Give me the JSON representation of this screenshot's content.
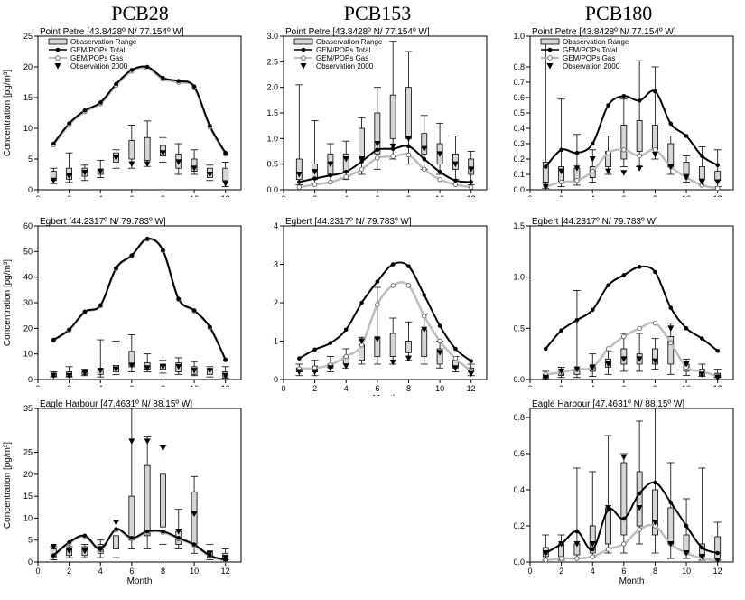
{
  "headers": {
    "col1": "PCB28",
    "col2": "PCB153",
    "col3": "PCB180"
  },
  "common": {
    "xlabel": "Month",
    "ylabel": "Concentration [pg/m³]",
    "legend": [
      "Obaservation Range",
      "GEM/POPs Total",
      "GEM/POPs Gas",
      "Observation 2000"
    ],
    "colors": {
      "total": "#000000",
      "gas": "#bdbdbd",
      "box_fill": "#d6d6d6"
    }
  },
  "chart_data": [
    {
      "id": "pcb28-pointpetre",
      "type": "line",
      "title": "Point Petre [43.8428º N/ 77.154º W]",
      "ylim": [
        0,
        25
      ],
      "yticks": [
        0,
        5,
        10,
        15,
        20,
        25
      ],
      "xlim": [
        0,
        13
      ],
      "xticks": [
        0,
        2,
        4,
        6,
        8,
        10,
        12
      ],
      "show_legend": true,
      "show_ylabel": true,
      "show_xlabel": false,
      "total": [
        7.5,
        10.8,
        12.9,
        14.2,
        17.2,
        19.5,
        20.0,
        18.2,
        17.7,
        16.8,
        10.4,
        6.0
      ],
      "gas": [
        7.3,
        10.6,
        12.7,
        14.0,
        17.0,
        19.3,
        19.8,
        18.0,
        17.5,
        16.6,
        10.2,
        5.8
      ],
      "box_low": [
        1.0,
        1.2,
        1.5,
        2.0,
        3.5,
        3.5,
        3.8,
        4.5,
        2.5,
        2.5,
        1.5,
        0.5
      ],
      "box_q1": [
        1.5,
        1.7,
        2.2,
        2.5,
        4.5,
        5.0,
        4.8,
        5.5,
        3.5,
        3.0,
        2.0,
        1.5
      ],
      "box_q3": [
        3.0,
        3.5,
        3.5,
        3.3,
        6.0,
        8.0,
        8.5,
        7.2,
        5.8,
        5.0,
        3.5,
        3.5
      ],
      "box_high": [
        3.5,
        6.0,
        4.0,
        4.8,
        6.5,
        10.5,
        11.2,
        8.5,
        7.5,
        6.5,
        4.0,
        4.5
      ],
      "obs": [
        1.5,
        2.2,
        2.8,
        3.0,
        5.2,
        4.2,
        4.2,
        6.0,
        4.5,
        3.5,
        2.5,
        1.0
      ]
    },
    {
      "id": "pcb153-pointpetre",
      "type": "line",
      "title": "Point Petre [43.8428º N/ 77.154º W]",
      "ylim": [
        0,
        3.0
      ],
      "yticks": [
        0.0,
        0.5,
        1.0,
        1.5,
        2.0,
        2.5,
        3.0
      ],
      "xlim": [
        0,
        13
      ],
      "xticks": [
        0,
        2,
        4,
        6,
        8,
        10,
        12
      ],
      "show_legend": true,
      "show_ylabel": false,
      "show_xlabel": false,
      "total": [
        0.15,
        0.22,
        0.28,
        0.35,
        0.55,
        0.78,
        0.8,
        0.85,
        0.6,
        0.35,
        0.18,
        0.15
      ],
      "gas": [
        0.05,
        0.1,
        0.15,
        0.25,
        0.4,
        0.62,
        0.65,
        0.68,
        0.4,
        0.2,
        0.1,
        0.05
      ],
      "box_low": [
        0.1,
        0.12,
        0.15,
        0.2,
        0.3,
        0.4,
        0.6,
        0.5,
        0.4,
        0.3,
        0.2,
        0.1
      ],
      "box_q1": [
        0.2,
        0.2,
        0.3,
        0.35,
        0.6,
        0.7,
        1.0,
        1.0,
        0.7,
        0.5,
        0.4,
        0.3
      ],
      "box_q3": [
        0.6,
        0.5,
        0.7,
        0.7,
        1.2,
        1.5,
        1.85,
        2.0,
        1.1,
        0.9,
        0.7,
        0.6
      ],
      "box_high": [
        2.05,
        1.35,
        0.9,
        0.95,
        1.4,
        2.0,
        2.9,
        2.7,
        1.45,
        1.3,
        1.05,
        0.75
      ],
      "obs": [
        0.3,
        0.35,
        0.5,
        0.6,
        0.6,
        0.9,
        0.85,
        1.0,
        0.8,
        0.7,
        0.5,
        0.4
      ]
    },
    {
      "id": "pcb180-pointpetre",
      "type": "line",
      "title": "Point Petre [43.8428º N/ 77.154º W]",
      "ylim": [
        0,
        1.0
      ],
      "yticks": [
        0.0,
        0.1,
        0.2,
        0.3,
        0.4,
        0.5,
        0.6,
        0.7,
        0.8,
        1.0
      ],
      "xlim": [
        0,
        13
      ],
      "xticks": [
        0,
        2,
        4,
        6,
        8,
        10,
        12
      ],
      "show_legend": true,
      "show_ylabel": false,
      "show_xlabel": false,
      "total": [
        0.15,
        0.26,
        0.24,
        0.3,
        0.55,
        0.61,
        0.58,
        0.64,
        0.43,
        0.35,
        0.22,
        0.16
      ],
      "gas": [
        0.02,
        0.05,
        0.06,
        0.12,
        0.24,
        0.26,
        0.22,
        0.26,
        0.15,
        0.08,
        0.03,
        0.01
      ],
      "box_low": [
        0.01,
        0.02,
        0.03,
        0.05,
        0.1,
        0.15,
        0.15,
        0.2,
        0.1,
        0.05,
        0.03,
        0.02
      ],
      "box_q1": [
        0.05,
        0.05,
        0.06,
        0.08,
        0.15,
        0.2,
        0.25,
        0.26,
        0.15,
        0.1,
        0.07,
        0.06
      ],
      "box_q3": [
        0.18,
        0.15,
        0.14,
        0.15,
        0.25,
        0.42,
        0.45,
        0.42,
        0.3,
        0.18,
        0.15,
        0.12
      ],
      "box_high": [
        0.95,
        0.59,
        0.36,
        0.26,
        0.35,
        0.59,
        0.84,
        0.8,
        0.35,
        0.22,
        0.28,
        0.26
      ],
      "obs": [
        0.02,
        0.12,
        0.14,
        0.2,
        0.12,
        0.11,
        0.14,
        0.23,
        0.15,
        0.08,
        0.05,
        0.05
      ]
    },
    {
      "id": "pcb28-egbert",
      "type": "line",
      "title": "Egbert [44.2317º N/ 79.783º W]",
      "ylim": [
        0,
        60
      ],
      "yticks": [
        0,
        10,
        20,
        30,
        40,
        50,
        60
      ],
      "xlim": [
        0,
        13
      ],
      "xticks": [
        0,
        2,
        4,
        6,
        8,
        10,
        12
      ],
      "show_legend": false,
      "show_ylabel": true,
      "show_xlabel": false,
      "total": [
        15.5,
        19.5,
        26.5,
        29.0,
        43.5,
        48.5,
        55.0,
        50.5,
        31.5,
        27.0,
        20.5,
        7.8
      ],
      "gas": [
        15.3,
        19.3,
        26.3,
        28.8,
        43.3,
        48.3,
        54.8,
        50.3,
        31.3,
        26.8,
        20.3,
        7.6
      ],
      "box_low": [
        1.0,
        1.0,
        1.5,
        1.0,
        2.0,
        3.0,
        3.0,
        2.5,
        2.0,
        1.5,
        1.0,
        0.5
      ],
      "box_q1": [
        1.2,
        1.2,
        2.0,
        2.0,
        3.0,
        5.0,
        4.0,
        4.0,
        3.0,
        2.0,
        2.0,
        1.0
      ],
      "box_q3": [
        2.5,
        3.0,
        3.0,
        4.0,
        5.5,
        11.0,
        6.5,
        6.0,
        6.5,
        5.0,
        4.0,
        3.0
      ],
      "box_high": [
        3.0,
        5.0,
        4.0,
        15.5,
        15.0,
        17.5,
        10.0,
        7.5,
        8.5,
        7.0,
        5.0,
        5.0
      ],
      "obs": [
        1.5,
        1.5,
        2.5,
        3.5,
        4.0,
        5.5,
        4.5,
        5.0,
        5.0,
        3.5,
        3.5,
        1.5
      ]
    },
    {
      "id": "pcb153-egbert",
      "type": "line",
      "title": "Egbert [44.2317º N/ 79.783º W]",
      "ylim": [
        0,
        4
      ],
      "yticks": [
        0,
        1,
        2,
        3,
        4
      ],
      "xlim": [
        0,
        13
      ],
      "xticks": [
        0,
        2,
        4,
        6,
        8,
        10,
        12
      ],
      "show_legend": false,
      "show_ylabel": false,
      "show_xlabel": true,
      "total": [
        0.55,
        0.78,
        0.95,
        1.3,
        2.0,
        2.55,
        3.0,
        2.95,
        2.2,
        1.4,
        0.8,
        0.48
      ],
      "gas": [
        0.28,
        0.3,
        0.38,
        0.6,
        0.9,
        1.95,
        2.45,
        2.45,
        1.65,
        1.0,
        0.55,
        0.22
      ],
      "box_low": [
        0.1,
        0.1,
        0.2,
        0.3,
        0.4,
        0.4,
        0.4,
        0.5,
        0.4,
        0.3,
        0.2,
        0.1
      ],
      "box_q1": [
        0.2,
        0.2,
        0.3,
        0.4,
        0.5,
        0.6,
        0.6,
        0.7,
        0.6,
        0.4,
        0.3,
        0.2
      ],
      "box_q3": [
        0.3,
        0.35,
        0.4,
        0.6,
        0.9,
        1.1,
        1.2,
        1.0,
        1.3,
        0.8,
        0.5,
        0.3
      ],
      "box_high": [
        0.4,
        0.5,
        0.6,
        0.8,
        1.1,
        2.4,
        1.6,
        1.5,
        1.7,
        1.0,
        0.6,
        0.4
      ],
      "obs": [
        0.2,
        0.2,
        0.3,
        0.35,
        1.0,
        1.05,
        0.45,
        0.55,
        1.3,
        0.7,
        0.3,
        0.15
      ]
    },
    {
      "id": "pcb180-egbert",
      "type": "line",
      "title": "Egbert [44.2317º N/ 79.783º W]",
      "ylim": [
        0,
        1.5
      ],
      "yticks": [
        0.0,
        0.5,
        1.0,
        1.5
      ],
      "xlim": [
        0,
        13
      ],
      "xticks": [
        0,
        2,
        4,
        6,
        8,
        10,
        12
      ],
      "show_legend": false,
      "show_ylabel": false,
      "show_xlabel": false,
      "total": [
        0.3,
        0.48,
        0.58,
        0.68,
        0.92,
        1.02,
        1.1,
        1.05,
        0.7,
        0.5,
        0.4,
        0.28
      ],
      "gas": [
        0.05,
        0.07,
        0.1,
        0.12,
        0.3,
        0.42,
        0.5,
        0.55,
        0.36,
        0.12,
        0.08,
        0.03
      ],
      "box_low": [
        0.01,
        0.02,
        0.02,
        0.03,
        0.05,
        0.08,
        0.08,
        0.1,
        0.05,
        0.04,
        0.03,
        0.02
      ],
      "box_q1": [
        0.02,
        0.04,
        0.05,
        0.08,
        0.12,
        0.15,
        0.15,
        0.15,
        0.15,
        0.08,
        0.04,
        0.02
      ],
      "box_q3": [
        0.05,
        0.08,
        0.1,
        0.14,
        0.2,
        0.3,
        0.25,
        0.3,
        0.42,
        0.15,
        0.1,
        0.06
      ],
      "box_high": [
        0.08,
        0.12,
        0.87,
        0.25,
        0.28,
        0.45,
        0.45,
        0.4,
        0.55,
        0.2,
        0.15,
        0.1
      ],
      "obs": [
        0.02,
        0.08,
        0.1,
        0.12,
        0.15,
        0.2,
        0.2,
        0.18,
        0.5,
        0.15,
        0.05,
        0.02
      ]
    },
    {
      "id": "pcb28-eagleharbour",
      "type": "line",
      "title": "Eagle Harbour [47.4631º N/ 88.15º W]",
      "ylim": [
        0,
        35
      ],
      "yticks": [
        0,
        5,
        10,
        15,
        20,
        25,
        35
      ],
      "xlim": [
        0,
        13
      ],
      "xticks": [
        0,
        2,
        4,
        6,
        8,
        10,
        12
      ],
      "show_legend": false,
      "show_ylabel": true,
      "show_xlabel": true,
      "total": [
        1.5,
        4.5,
        6.0,
        3.0,
        7.5,
        5.5,
        7.0,
        7.0,
        5.5,
        4.0,
        1.5,
        0.5
      ],
      "gas": [
        1.3,
        4.3,
        5.8,
        2.8,
        7.3,
        5.3,
        6.8,
        6.8,
        5.3,
        3.8,
        1.3,
        0.3
      ],
      "box_low": [
        0.5,
        1.0,
        1.0,
        1.0,
        1.0,
        3.0,
        3.0,
        4.0,
        3.0,
        2.0,
        0.5,
        0.5
      ],
      "box_q1": [
        1.0,
        1.5,
        1.5,
        2.0,
        3.0,
        5.0,
        6.0,
        8.0,
        4.0,
        4.0,
        1.0,
        0.8
      ],
      "box_q3": [
        3.0,
        3.0,
        3.5,
        4.0,
        6.0,
        15.0,
        22.0,
        20.0,
        7.0,
        16.0,
        2.5,
        2.0
      ],
      "box_high": [
        3.5,
        3.5,
        4.0,
        5.0,
        9.5,
        35.0,
        28.5,
        26.5,
        12.0,
        19.5,
        4.0,
        3.0
      ],
      "obs": [
        3.5,
        2.5,
        2.5,
        3.0,
        9.0,
        27.5,
        27.5,
        26.0,
        7.0,
        11.0,
        2.0,
        1.0
      ]
    },
    {
      "id": "pcb180-eagleharbour",
      "type": "line",
      "title": "Eagle Harbour [47.4631º N/ 88.15º W]",
      "ylim": [
        0,
        0.85
      ],
      "yticks": [
        0.0,
        0.2,
        0.4,
        0.6,
        0.8
      ],
      "xlim": [
        0,
        13
      ],
      "xticks": [
        0,
        2,
        4,
        6,
        8,
        10,
        12
      ],
      "show_legend": false,
      "show_ylabel": false,
      "show_xlabel": true,
      "total": [
        0.05,
        0.1,
        0.17,
        0.07,
        0.29,
        0.24,
        0.38,
        0.44,
        0.33,
        0.2,
        0.08,
        0.05
      ],
      "gas": [
        0.01,
        0.02,
        0.02,
        0.03,
        0.07,
        0.1,
        0.18,
        0.2,
        0.1,
        0.05,
        0.02,
        0.01
      ],
      "box_low": [
        0.01,
        0.01,
        0.02,
        0.03,
        0.05,
        0.05,
        0.1,
        0.05,
        0.02,
        0.02,
        0.01,
        0.01
      ],
      "box_q1": [
        0.03,
        0.03,
        0.04,
        0.05,
        0.1,
        0.15,
        0.2,
        0.15,
        0.1,
        0.05,
        0.03,
        0.02
      ],
      "box_q3": [
        0.08,
        0.1,
        0.1,
        0.2,
        0.3,
        0.55,
        0.5,
        0.4,
        0.3,
        0.15,
        0.1,
        0.14
      ],
      "box_high": [
        0.15,
        0.15,
        0.52,
        0.5,
        0.7,
        0.6,
        0.78,
        0.85,
        0.55,
        0.35,
        0.52,
        0.22
      ],
      "obs": [
        0.05,
        0.1,
        0.1,
        0.1,
        0.3,
        0.58,
        0.3,
        0.22,
        0.1,
        0.05,
        0.03,
        0.01
      ]
    }
  ]
}
